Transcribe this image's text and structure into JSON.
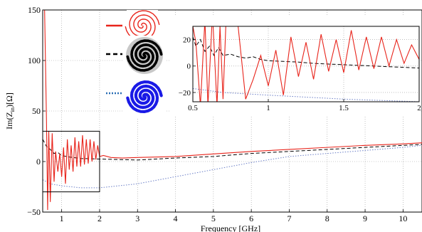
{
  "chart_data": [
    {
      "type": "line",
      "xlabel": "Frequency [GHz]",
      "ylabel": "Im(Z",
      "ylabel_sub": "in",
      "ylabel_suffix": ")[Ω]",
      "xlim": [
        0.5,
        10.5
      ],
      "ylim": [
        -50,
        150
      ],
      "xticks": [
        1,
        2,
        3,
        4,
        5,
        6,
        7,
        8,
        9,
        10
      ],
      "xtick_labels": [
        "1",
        "2",
        "3",
        "4",
        "5",
        "6",
        "7",
        "8",
        "9",
        "10"
      ],
      "yticks": [
        -50,
        0,
        50,
        100,
        150
      ],
      "ytick_labels": [
        "−50",
        "0",
        "50",
        "100",
        "150"
      ],
      "grid": "dotted",
      "legend_placement": "top-left, icon legend (spiral antenna images)",
      "zoom_box": {
        "x": [
          0.5,
          2
        ],
        "y": [
          -30,
          30
        ]
      },
      "series": [
        {
          "color": "#e8241b",
          "style": "solid",
          "icon": "red-dual-spiral-icon",
          "x": [
            0.5,
            0.55,
            0.6,
            0.63,
            0.66,
            0.7,
            0.75,
            0.8,
            0.84,
            0.9,
            0.95,
            1.0,
            1.05,
            1.1,
            1.15,
            1.2,
            1.25,
            1.3,
            1.35,
            1.4,
            1.45,
            1.5,
            1.55,
            1.6,
            1.65,
            1.7,
            1.75,
            1.8,
            1.85,
            1.9,
            1.95,
            2.0,
            2.1,
            2.3,
            2.6,
            3,
            4,
            5,
            6,
            7,
            8,
            9,
            10,
            10.5
          ],
          "y": [
            150,
            150,
            40,
            -48,
            30,
            -40,
            28,
            -20,
            10,
            -10,
            8,
            -15,
            14,
            -22,
            22,
            -8,
            16,
            -10,
            24,
            -5,
            20,
            -5,
            26,
            -3,
            22,
            -2,
            22,
            0,
            20,
            2,
            16,
            5,
            6,
            4,
            3.5,
            4,
            5,
            7.5,
            10,
            12,
            14,
            16,
            17.5,
            18.5
          ]
        },
        {
          "color": "#000000",
          "style": "dashed",
          "icon": "black-dual-spiral-icon",
          "x": [
            0.5,
            0.6,
            0.7,
            0.8,
            0.9,
            1.0,
            1.2,
            1.5,
            2.0,
            2.5,
            3,
            4,
            5,
            6,
            7,
            8,
            9,
            10,
            10.5
          ],
          "y": [
            22,
            15,
            12,
            8,
            9,
            6,
            4.5,
            3,
            2.5,
            2,
            1.5,
            3.5,
            5,
            8,
            10,
            12,
            14,
            16,
            17
          ]
        },
        {
          "color": "#6b7fc7",
          "style": "dotted",
          "icon": "blue-dual-spiral-icon",
          "x": [
            0.5,
            0.7,
            1.0,
            1.5,
            2.0,
            3,
            4,
            5,
            6,
            7,
            8,
            9,
            10,
            10.5
          ],
          "y": [
            -18,
            -22,
            -24,
            -26,
            -26,
            -22,
            -15,
            -8,
            -1,
            5,
            8,
            11,
            14,
            16
          ]
        }
      ]
    },
    {
      "type": "line",
      "inset": true,
      "xlim": [
        0.5,
        2
      ],
      "ylim": [
        -27,
        30
      ],
      "xticks": [
        0.5,
        1,
        1.5,
        2
      ],
      "xtick_labels": [
        "0.5",
        "1",
        "1.5",
        "2"
      ],
      "yticks": [
        -20,
        0,
        20
      ],
      "ytick_labels": [
        "−20",
        "0",
        "20"
      ],
      "grid": "dotted",
      "series": [
        {
          "color": "#e8241b",
          "style": "solid",
          "x": [
            0.5,
            0.52,
            0.55,
            0.58,
            0.6,
            0.63,
            0.66,
            0.68,
            0.7,
            0.72,
            0.75,
            0.8,
            0.85,
            0.9,
            0.95,
            1.0,
            1.05,
            1.1,
            1.15,
            1.2,
            1.25,
            1.3,
            1.35,
            1.4,
            1.45,
            1.5,
            1.55,
            1.6,
            1.65,
            1.7,
            1.75,
            1.8,
            1.85,
            1.9,
            1.95,
            2.0
          ],
          "y": [
            30,
            18,
            -30,
            35,
            -30,
            40,
            -30,
            30,
            -25,
            35,
            30,
            30,
            -25,
            -10,
            8,
            -15,
            12,
            -22,
            22,
            -8,
            18,
            -10,
            24,
            -4,
            20,
            -5,
            27,
            -3,
            22,
            -2,
            22,
            0,
            20,
            2,
            16,
            5
          ]
        },
        {
          "color": "#000000",
          "style": "dashed",
          "x": [
            0.5,
            0.52,
            0.55,
            0.58,
            0.61,
            0.64,
            0.67,
            0.7,
            0.75,
            0.8,
            0.85,
            0.9,
            0.95,
            1.0,
            1.1,
            1.2,
            1.3,
            1.4,
            1.5,
            1.6,
            1.7,
            1.8,
            1.9,
            2.0
          ],
          "y": [
            22,
            15,
            20,
            11,
            15,
            8,
            14,
            8,
            9,
            7,
            6,
            7,
            5,
            4,
            3.5,
            3,
            2,
            1.5,
            1,
            0.5,
            0,
            -0.5,
            -1,
            -1.5
          ]
        },
        {
          "color": "#6b7fc7",
          "style": "dotted",
          "x": [
            0.5,
            0.7,
            1.0,
            1.5,
            2.0
          ],
          "y": [
            -17,
            -20,
            -22,
            -25,
            -27
          ]
        }
      ]
    }
  ]
}
